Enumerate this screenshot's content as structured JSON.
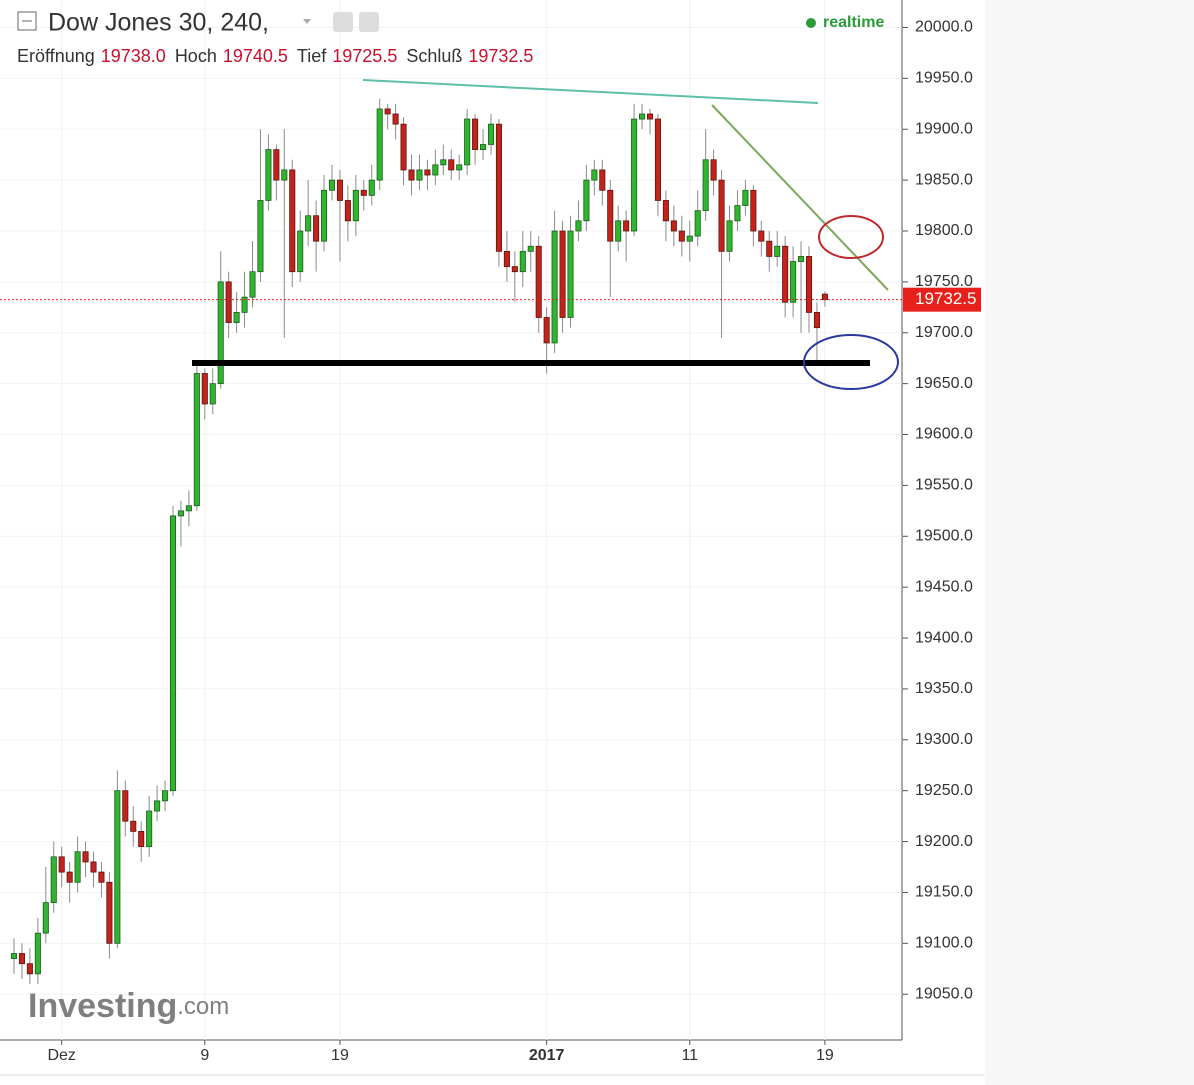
{
  "chart_data": {
    "type": "candlestick",
    "title": "Dow Jones 30, 240,",
    "status": "realtime",
    "ohlc_header": [
      {
        "label": "Eröffnung",
        "value": "19738.0"
      },
      {
        "label": "Hoch",
        "value": "19740.5"
      },
      {
        "label": "Tief",
        "value": "19725.5"
      },
      {
        "label": "Schluß",
        "value": "19732.5"
      }
    ],
    "watermark": {
      "brand": "Investing",
      "suffix": ".com"
    },
    "last_price": 19732.5,
    "up_color": "#2fb52f",
    "down_color": "#c2241c",
    "grid": true,
    "ylim": [
      19005,
      20027
    ],
    "yticks": [
      {
        "value": 19050,
        "label": "19050.0"
      },
      {
        "value": 19100,
        "label": "19100.0"
      },
      {
        "value": 19150,
        "label": "19150.0"
      },
      {
        "value": 19200,
        "label": "19200.0"
      },
      {
        "value": 19250,
        "label": "19250.0"
      },
      {
        "value": 19300,
        "label": "19300.0"
      },
      {
        "value": 19350,
        "label": "19350.0"
      },
      {
        "value": 19400,
        "label": "19400.0"
      },
      {
        "value": 19450,
        "label": "19450.0"
      },
      {
        "value": 19500,
        "label": "19500.0"
      },
      {
        "value": 19550,
        "label": "19550.0"
      },
      {
        "value": 19600,
        "label": "19600.0"
      },
      {
        "value": 19650,
        "label": "19650.0"
      },
      {
        "value": 19700,
        "label": "19700.0"
      },
      {
        "value": 19750,
        "label": "19750.0"
      },
      {
        "value": 19800,
        "label": "19800.0"
      },
      {
        "value": 19850,
        "label": "19850.0"
      },
      {
        "value": 19900,
        "label": "19900.0"
      },
      {
        "value": 19950,
        "label": "19950.0"
      },
      {
        "value": 20000,
        "label": "20000.0"
      }
    ],
    "categories": [
      null,
      null,
      null,
      null,
      null,
      null,
      "Dez",
      null,
      null,
      null,
      null,
      null,
      null,
      null,
      null,
      null,
      null,
      null,
      null,
      null,
      null,
      null,
      null,
      null,
      "9",
      null,
      null,
      null,
      null,
      null,
      null,
      null,
      null,
      null,
      null,
      null,
      null,
      null,
      null,
      null,
      null,
      "19",
      null,
      null,
      null,
      null,
      null,
      null,
      null,
      null,
      null,
      null,
      null,
      null,
      null,
      null,
      null,
      null,
      null,
      null,
      null,
      null,
      null,
      null,
      null,
      null,
      null,
      "2017",
      null,
      null,
      null,
      null,
      null,
      null,
      null,
      null,
      null,
      null,
      null,
      null,
      null,
      null,
      null,
      null,
      null,
      "11",
      null,
      null,
      null,
      null,
      null,
      null,
      null,
      null,
      null,
      null,
      null,
      null,
      null,
      null,
      null,
      null,
      "19"
    ],
    "open": [
      19085,
      19090,
      19080,
      19070,
      19110,
      19140,
      19185,
      19170,
      19160,
      19190,
      19180,
      19170,
      19160,
      19100,
      19250,
      19220,
      19210,
      19195,
      19230,
      19240,
      19250,
      19520,
      19525,
      19530,
      19660,
      19630,
      19650,
      19750,
      19710,
      19720,
      19735,
      19760,
      19830,
      19880,
      19850,
      19860,
      19760,
      19800,
      19815,
      19790,
      19840,
      19850,
      19830,
      19810,
      19840,
      19835,
      19850,
      19920,
      19915,
      19905,
      19860,
      19850,
      19860,
      19855,
      19865,
      19870,
      19860,
      19865,
      19910,
      19880,
      19885,
      19905,
      19780,
      19765,
      19760,
      19780,
      19785,
      19715,
      19690,
      19800,
      19715,
      19800,
      19810,
      19850,
      19860,
      19840,
      19790,
      19810,
      19800,
      19910,
      19915,
      19910,
      19830,
      19810,
      19800,
      19790,
      19795,
      19820,
      19870,
      19850,
      19780,
      19810,
      19825,
      19840,
      19800,
      19790,
      19775,
      19785,
      19730,
      19770,
      19775,
      19720,
      19738
    ],
    "high": [
      19105,
      19100,
      19095,
      19125,
      19175,
      19200,
      19195,
      19180,
      19205,
      19200,
      19190,
      19180,
      19170,
      19270,
      19260,
      19235,
      19220,
      19245,
      19255,
      19260,
      19530,
      19535,
      19545,
      19670,
      19665,
      19665,
      19780,
      19760,
      19740,
      19760,
      19790,
      19900,
      19895,
      19885,
      19900,
      19870,
      19820,
      19850,
      19830,
      19855,
      19865,
      19860,
      19845,
      19855,
      19850,
      19865,
      19930,
      19925,
      19925,
      19912,
      19875,
      19875,
      19870,
      19880,
      19885,
      19880,
      19875,
      19920,
      19915,
      19900,
      19915,
      19910,
      19800,
      19780,
      19800,
      19800,
      19795,
      19725,
      19820,
      19810,
      19815,
      19830,
      19865,
      19870,
      19870,
      19850,
      19825,
      19820,
      19925,
      19925,
      19920,
      19915,
      19840,
      19825,
      19815,
      19810,
      19840,
      19900,
      19880,
      19860,
      19825,
      19840,
      19850,
      19845,
      19810,
      19800,
      19800,
      19795,
      19785,
      19790,
      19785,
      19730,
      19740.5
    ],
    "low": [
      19070,
      19065,
      19060,
      19060,
      19100,
      19130,
      19155,
      19140,
      19150,
      19165,
      19155,
      19145,
      19085,
      19095,
      19205,
      19195,
      19180,
      19185,
      19220,
      19230,
      19245,
      19490,
      19510,
      19525,
      19615,
      19620,
      19645,
      19695,
      19700,
      19705,
      19725,
      19750,
      19820,
      19830,
      19695,
      19745,
      19750,
      19785,
      19760,
      19780,
      19830,
      19770,
      19790,
      19795,
      19820,
      19825,
      19840,
      19900,
      19890,
      19845,
      19835,
      19840,
      19840,
      19845,
      19855,
      19850,
      19850,
      19855,
      19865,
      19870,
      19875,
      19765,
      19750,
      19730,
      19745,
      19760,
      19700,
      19660,
      19680,
      19700,
      19705,
      19790,
      19800,
      19835,
      19825,
      19735,
      19780,
      19770,
      19795,
      19900,
      19895,
      19815,
      19790,
      19785,
      19775,
      19770,
      19785,
      19810,
      19835,
      19695,
      19770,
      19800,
      19815,
      19785,
      19775,
      19760,
      19765,
      19715,
      19715,
      19700,
      19700,
      19670,
      19725.5
    ],
    "close": [
      19090,
      19080,
      19070,
      19110,
      19140,
      19185,
      19170,
      19160,
      19190,
      19180,
      19170,
      19160,
      19100,
      19250,
      19220,
      19210,
      19195,
      19230,
      19240,
      19250,
      19520,
      19525,
      19530,
      19660,
      19630,
      19650,
      19750,
      19710,
      19720,
      19735,
      19760,
      19830,
      19880,
      19850,
      19860,
      19760,
      19800,
      19815,
      19790,
      19840,
      19850,
      19830,
      19810,
      19840,
      19835,
      19850,
      19920,
      19915,
      19905,
      19860,
      19850,
      19860,
      19855,
      19865,
      19870,
      19860,
      19865,
      19910,
      19880,
      19885,
      19905,
      19780,
      19765,
      19760,
      19780,
      19785,
      19715,
      19690,
      19800,
      19715,
      19800,
      19810,
      19850,
      19860,
      19840,
      19790,
      19810,
      19800,
      19910,
      19915,
      19910,
      19830,
      19810,
      19800,
      19790,
      19795,
      19820,
      19870,
      19850,
      19780,
      19810,
      19825,
      19840,
      19800,
      19790,
      19775,
      19785,
      19730,
      19770,
      19775,
      19720,
      19705,
      19732.5
    ]
  }
}
